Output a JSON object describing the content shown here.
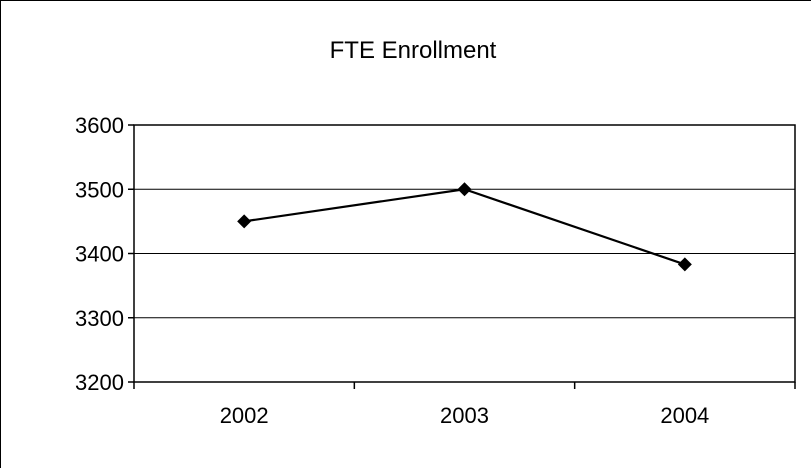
{
  "chart_data": {
    "type": "line",
    "title": "FTE Enrollment",
    "xlabel": "",
    "ylabel": "",
    "categories": [
      "2002",
      "2003",
      "2004"
    ],
    "series": [
      {
        "values": [
          3450,
          3500,
          3383
        ]
      }
    ],
    "ylim": [
      3200,
      3600
    ],
    "yticks": [
      3200,
      3300,
      3400,
      3500,
      3600
    ],
    "grid": true,
    "legend": "none",
    "marker": "diamond",
    "line_color": "#000000",
    "marker_color": "#000000",
    "grid_color": "#000000",
    "background_color": "#ffffff"
  }
}
